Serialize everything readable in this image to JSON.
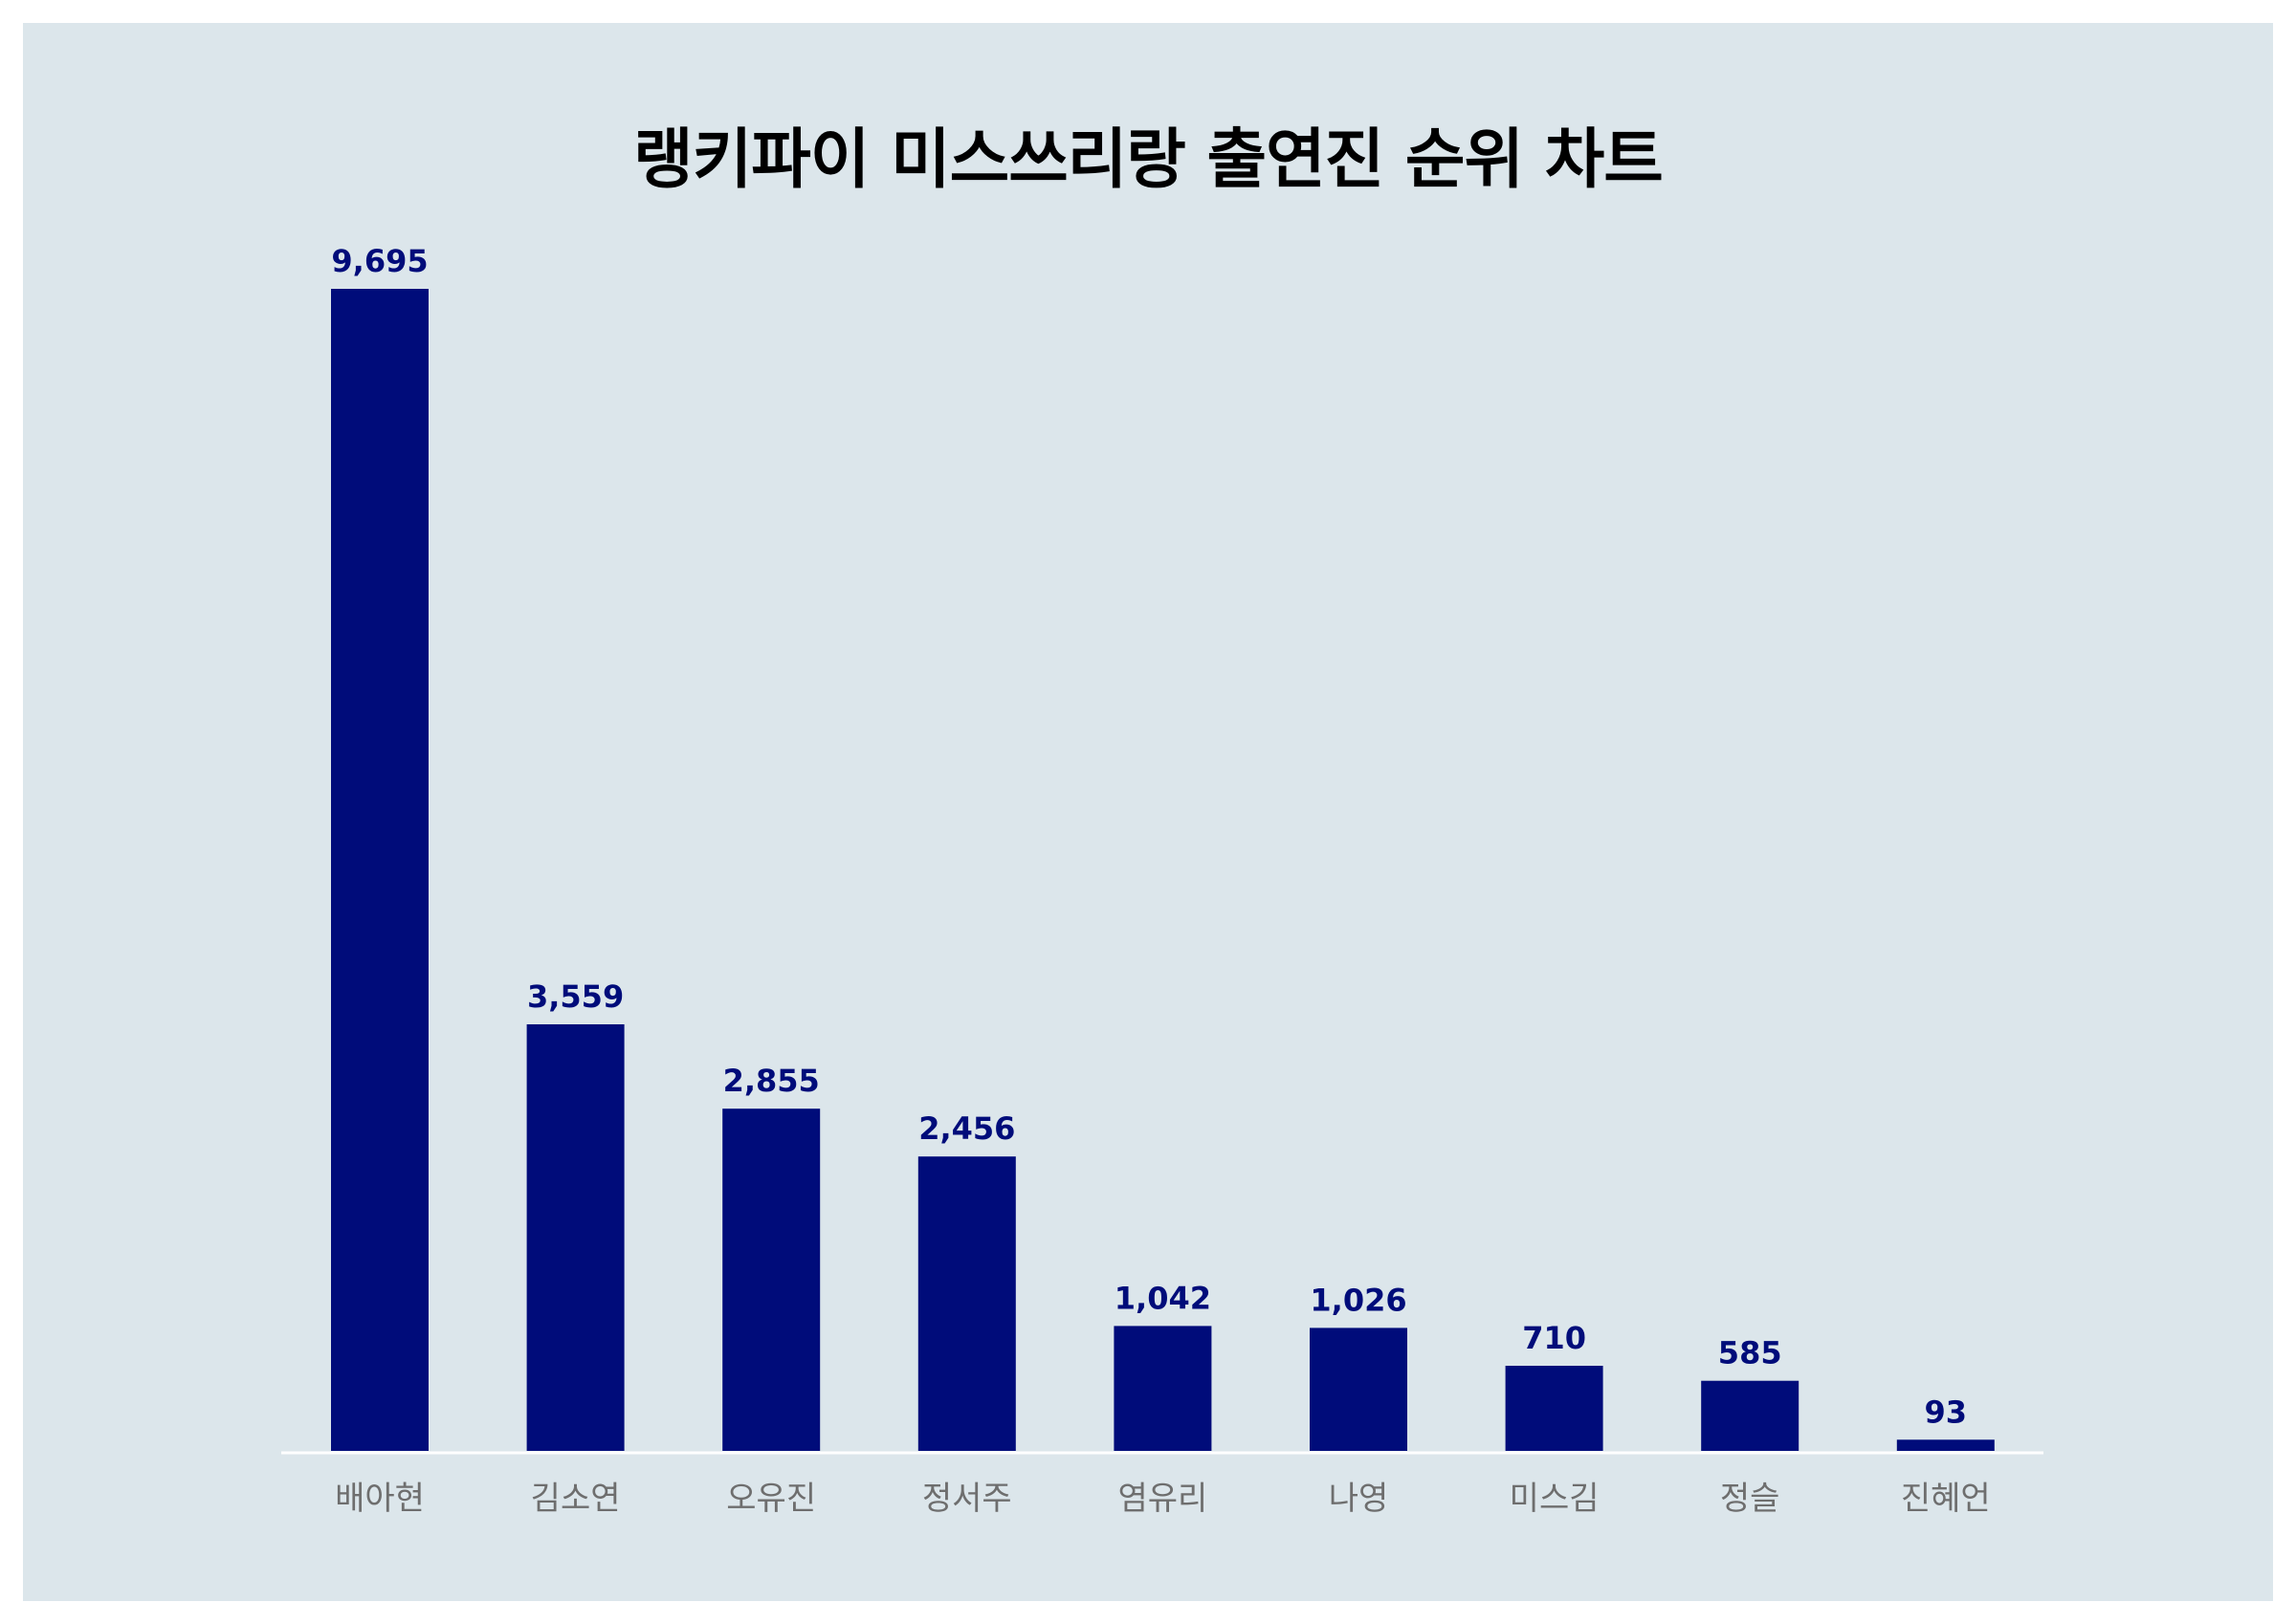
{
  "chart_data": {
    "type": "bar",
    "title": "랭키파이 미스쓰리랑 출연진 순위 차트",
    "xlabel": "",
    "ylabel": "",
    "categories": [
      "배아현",
      "김소연",
      "오유진",
      "정서주",
      "염유리",
      "나영",
      "미스김",
      "정슬",
      "진혜언"
    ],
    "values": [
      9695,
      3559,
      2855,
      2456,
      1042,
      1026,
      710,
      585,
      93
    ],
    "value_labels": [
      "9,695",
      "3,559",
      "2,855",
      "2,456",
      "1,042",
      "1,026",
      "710",
      "585",
      "93"
    ],
    "ylim": [
      0,
      9695
    ],
    "grid": false,
    "legend": "none"
  },
  "colors": {
    "background": "#dce6eb",
    "bar": "#000c7a",
    "value_label": "#000c7a",
    "category_label": "#6e6e6e",
    "baseline": "#ffffff",
    "title": "#000000"
  }
}
